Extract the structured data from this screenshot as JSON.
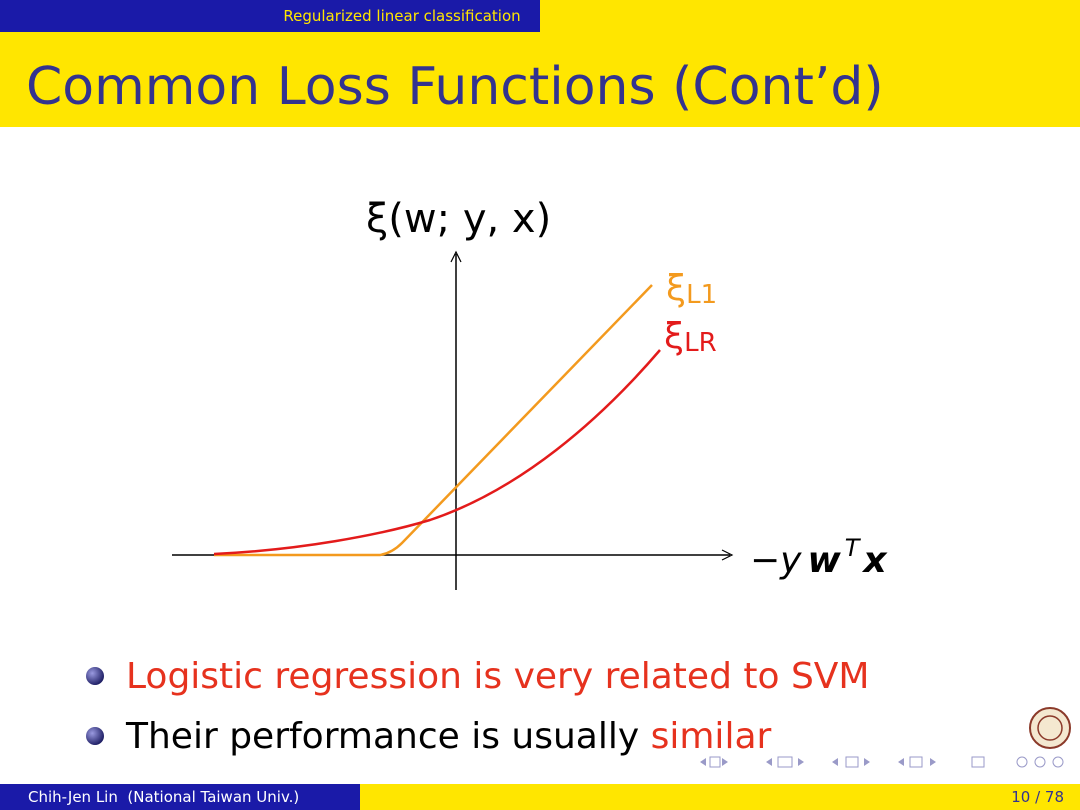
{
  "header": {
    "section": "Regularized linear classification",
    "title": "Common Loss Functions (Cont’d)"
  },
  "diagram": {
    "y_axis_label": "ξ(w; y, x)",
    "x_axis_label": [
      "−y",
      "w",
      "T",
      "x"
    ],
    "curves": [
      {
        "symbol": "ξ",
        "subscript": "L1"
      },
      {
        "symbol": "ξ",
        "subscript": "LR"
      }
    ]
  },
  "bullets": [
    [
      {
        "text": "Logistic regression is very related to SVM",
        "highlight": true
      }
    ],
    [
      {
        "text": "Their performance is usually ",
        "highlight": false
      },
      {
        "text": "similar",
        "highlight": true
      }
    ]
  ],
  "footer": {
    "author": "Chih-Jen Lin  (National Taiwan Univ.)",
    "page": "10 / 78"
  }
}
